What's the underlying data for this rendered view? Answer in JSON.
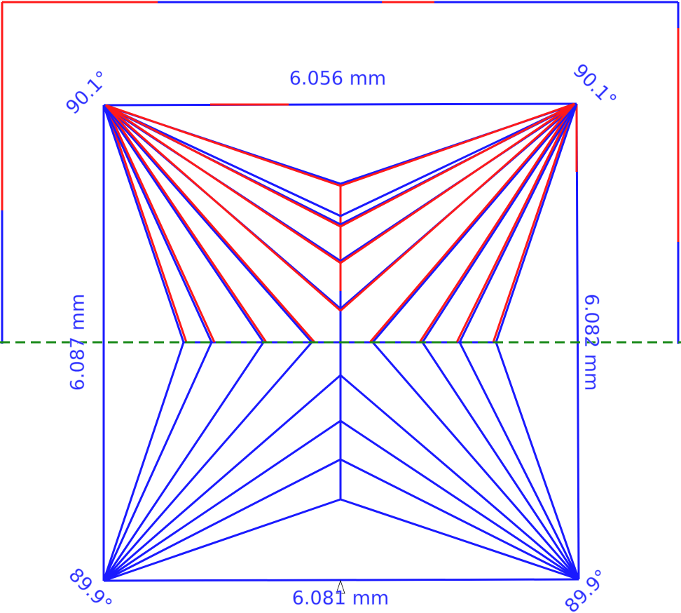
{
  "dimensions": {
    "top": "6.056 mm",
    "bottom": "6.081 mm",
    "left": "6.087 mm",
    "right": "6.082 mm"
  },
  "angles": {
    "top_left": "90.1°",
    "top_right": "90.1°",
    "bottom_left": "89.9°",
    "bottom_right": "89.9°"
  }
}
